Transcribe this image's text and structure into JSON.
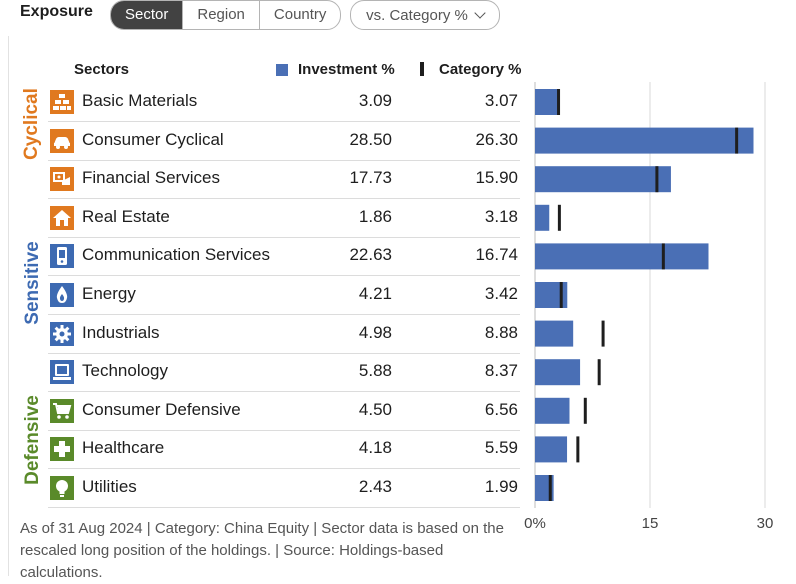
{
  "header": {
    "title": "Exposure",
    "tabs": [
      {
        "label": "Sector",
        "active": true
      },
      {
        "label": "Region",
        "active": false
      },
      {
        "label": "Country",
        "active": false
      }
    ],
    "compare_label": "vs. Category %"
  },
  "table": {
    "col_sector": "Sectors",
    "col_investment": "Investment  %",
    "col_category": "Category  %"
  },
  "groups": [
    {
      "label": "Cyclical",
      "color": "#e0791f"
    },
    {
      "label": "Sensitive",
      "color": "#3d6ab2"
    },
    {
      "label": "Defensive",
      "color": "#5a8a2a"
    }
  ],
  "chart_data": {
    "type": "bar",
    "orientation": "horizontal",
    "categories": [
      "Basic Materials",
      "Consumer Cyclical",
      "Financial Services",
      "Real Estate",
      "Communication Services",
      "Energy",
      "Industrials",
      "Technology",
      "Consumer Defensive",
      "Healthcare",
      "Utilities"
    ],
    "series": [
      {
        "name": "Investment %",
        "values": [
          3.09,
          28.5,
          17.73,
          1.86,
          22.63,
          4.21,
          4.98,
          5.88,
          4.5,
          4.18,
          2.43
        ],
        "color": "#4a6fb5"
      },
      {
        "name": "Category %",
        "values": [
          3.07,
          26.3,
          15.9,
          3.18,
          16.74,
          3.42,
          8.88,
          8.37,
          6.56,
          5.59,
          1.99
        ],
        "color": "#1e1e1e"
      }
    ],
    "values_text": {
      "investment": [
        "3.09",
        "28.50",
        "17.73",
        "1.86",
        "22.63",
        "4.21",
        "4.98",
        "5.88",
        "4.50",
        "4.18",
        "2.43"
      ],
      "category": [
        "3.07",
        "26.30",
        "15.90",
        "3.18",
        "16.74",
        "3.42",
        "8.88",
        "8.37",
        "6.56",
        "5.59",
        "1.99"
      ]
    },
    "icons": [
      "basic-materials-icon",
      "consumer-cyclical-icon",
      "financial-services-icon",
      "real-estate-icon",
      "communication-services-icon",
      "energy-icon",
      "industrials-icon",
      "technology-icon",
      "consumer-defensive-icon",
      "healthcare-icon",
      "utilities-icon"
    ],
    "row_groups": [
      0,
      0,
      0,
      0,
      1,
      1,
      1,
      1,
      2,
      2,
      2
    ],
    "xlim": [
      0,
      30
    ],
    "ticks": [
      0,
      15,
      30
    ],
    "tick_labels": [
      "0%",
      "15",
      "30"
    ],
    "grid": true
  },
  "footnote": "As of 31 Aug 2024 | Category: China Equity | Sector data is based on the rescaled long position of the holdings. | Source: Holdings-based calculations."
}
